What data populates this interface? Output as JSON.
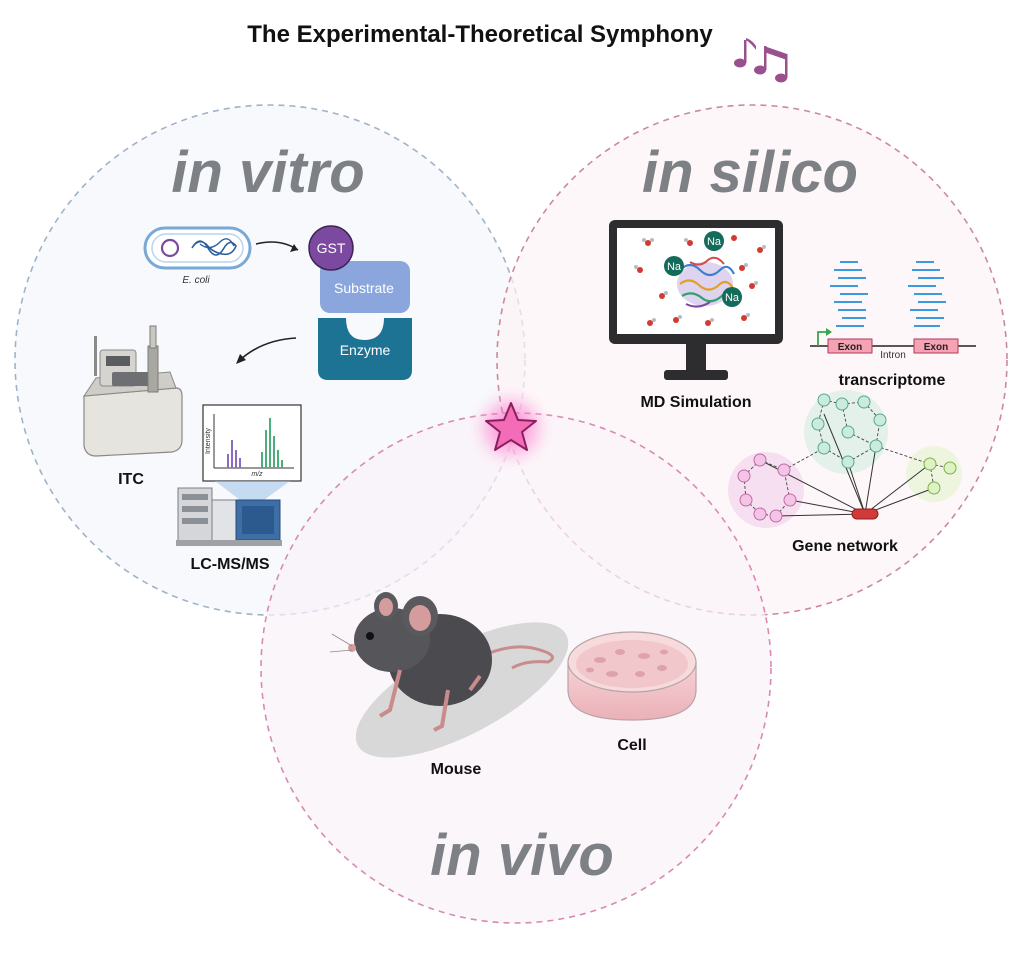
{
  "title": "The Experimental-Theoretical Symphony",
  "sections": {
    "in_vitro": "in vitro",
    "in_silico": "in silico",
    "in_vivo": "in vivo"
  },
  "in_vitro": {
    "organism": "E. coli",
    "gst": "GST",
    "substrate": "Substrate",
    "enzyme": "Enzyme",
    "itc": "ITC",
    "lcms": "LC-MS/MS",
    "spectrum_y": "Intensity",
    "spectrum_x": "m/z"
  },
  "in_silico": {
    "md": "MD Simulation",
    "na": "Na",
    "transcriptome": "transcriptome",
    "exon": "Exon",
    "intron": "Intron",
    "gene_network": "Gene network"
  },
  "in_vivo": {
    "mouse": "Mouse",
    "cell": "Cell"
  },
  "colors": {
    "vitro_circle": "#9fb3c8",
    "silico_circle": "#c98a9e",
    "vivo_circle": "#d98ab4",
    "star": "#f46cb8",
    "gst": "#7b4aa0",
    "substrate": "#8aa6dd",
    "enzyme": "#1d7393",
    "music_notes": "#9a4f8e"
  }
}
